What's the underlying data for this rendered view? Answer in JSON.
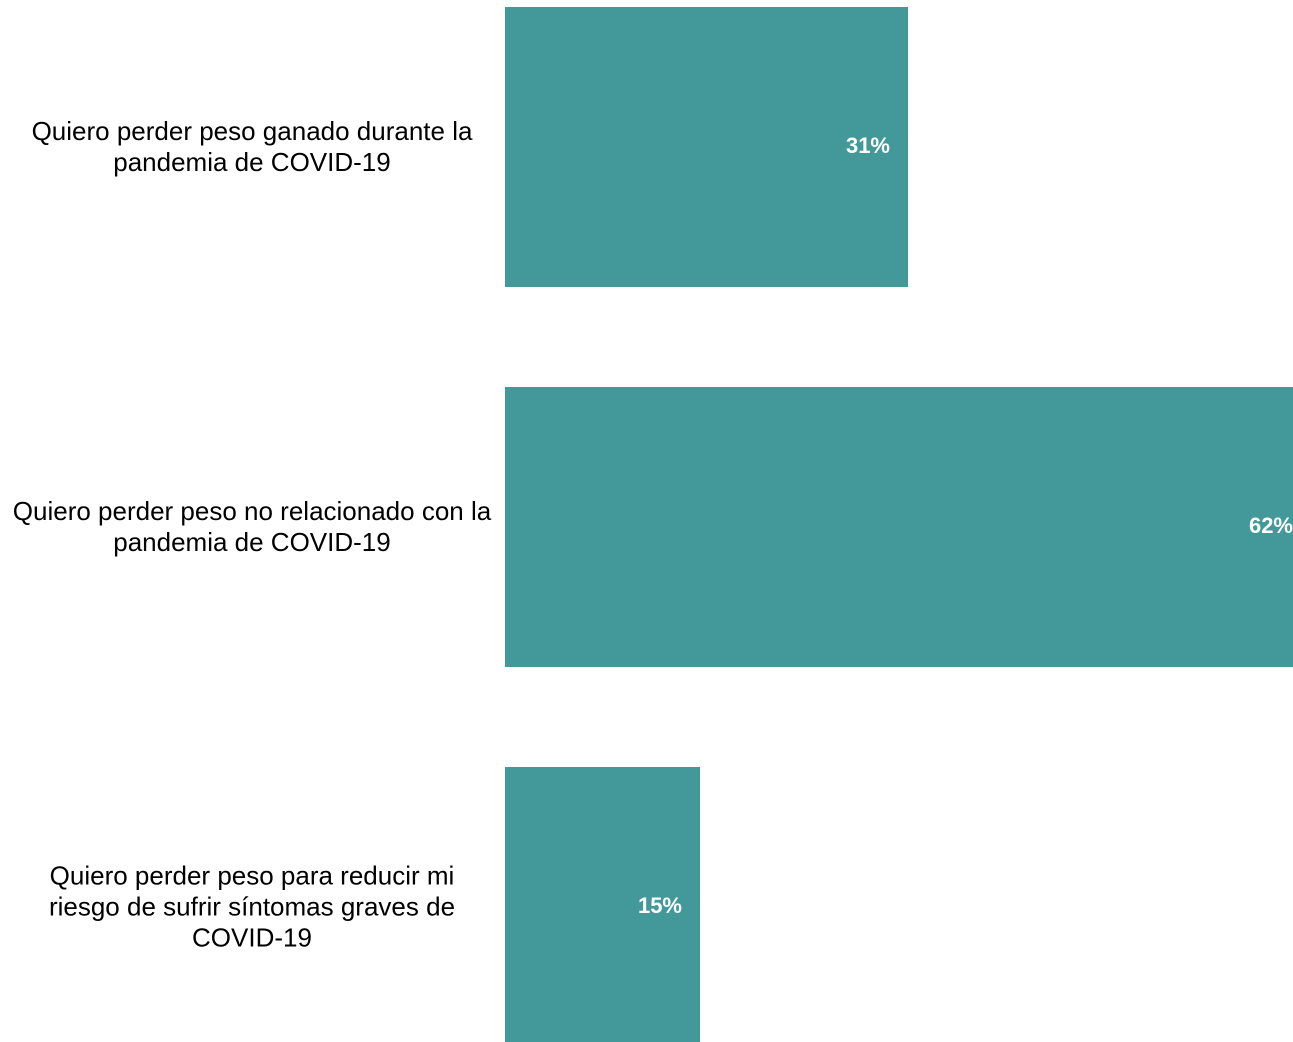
{
  "chart_data": {
    "type": "barh",
    "categories": [
      "Quiero perder peso ganado durante la pandemia de COVID-19",
      "Quiero perder peso no relacionado con la pandemia de COVID-19",
      "Quiero perder peso para reducir mi riesgo de sufrir síntomas graves de COVID-19"
    ],
    "values": [
      31,
      62,
      15
    ],
    "value_labels": [
      "31%",
      "62%",
      "15%"
    ],
    "color": "#43999a"
  }
}
